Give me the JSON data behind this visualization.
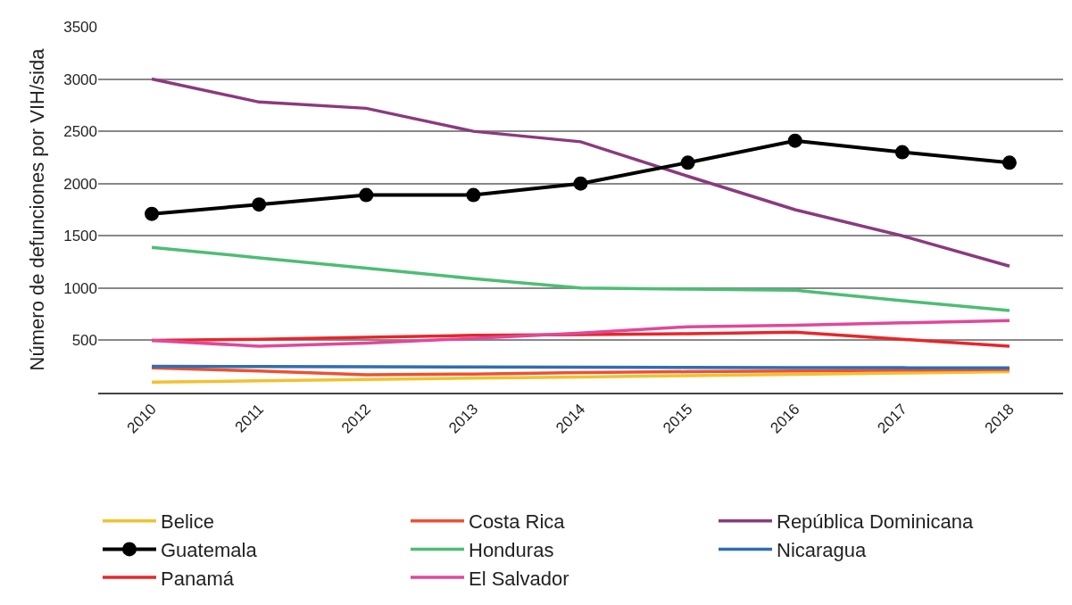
{
  "chart_data": {
    "type": "line",
    "ylabel": "Número de defunciones por VIH/sida",
    "categories": [
      "2010",
      "2011",
      "2012",
      "2013",
      "2014",
      "2015",
      "2016",
      "2017",
      "2018"
    ],
    "ylim": [
      0,
      3500
    ],
    "yticks": [
      500,
      1000,
      1500,
      2000,
      2500,
      3000,
      3500
    ],
    "grid": "y",
    "legend": "bottom",
    "series": [
      {
        "name": "Belice",
        "color": "#f2c12e",
        "values": [
          100,
          113,
          125,
          138,
          150,
          163,
          175,
          188,
          200
        ]
      },
      {
        "name": "Costa Rica",
        "color": "#ee5130",
        "values": [
          237,
          207,
          170,
          178,
          193,
          200,
          207,
          215,
          222
        ]
      },
      {
        "name": "República Dominicana",
        "color": "#8b3a7e",
        "values": [
          3000,
          2780,
          2720,
          2500,
          2400,
          2070,
          1750,
          1500,
          1210
        ]
      },
      {
        "name": "Guatemala",
        "color": "#000000",
        "marker": "circle",
        "values": [
          1710,
          1800,
          1890,
          1890,
          2000,
          2200,
          2410,
          2300,
          2200
        ]
      },
      {
        "name": "Honduras",
        "color": "#4dbd74",
        "values": [
          1390,
          1290,
          1190,
          1090,
          1000,
          990,
          980,
          880,
          785
        ]
      },
      {
        "name": "Nicaragua",
        "color": "#2f6db5",
        "values": [
          252,
          250,
          248,
          246,
          244,
          242,
          240,
          238,
          237
        ]
      },
      {
        "name": "Panamá",
        "color": "#e8262a",
        "values": [
          500,
          510,
          530,
          548,
          555,
          563,
          578,
          510,
          444
        ]
      },
      {
        "name": "El Salvador",
        "color": "#e0489a",
        "values": [
          500,
          444,
          474,
          519,
          570,
          630,
          644,
          667,
          689
        ]
      }
    ]
  }
}
